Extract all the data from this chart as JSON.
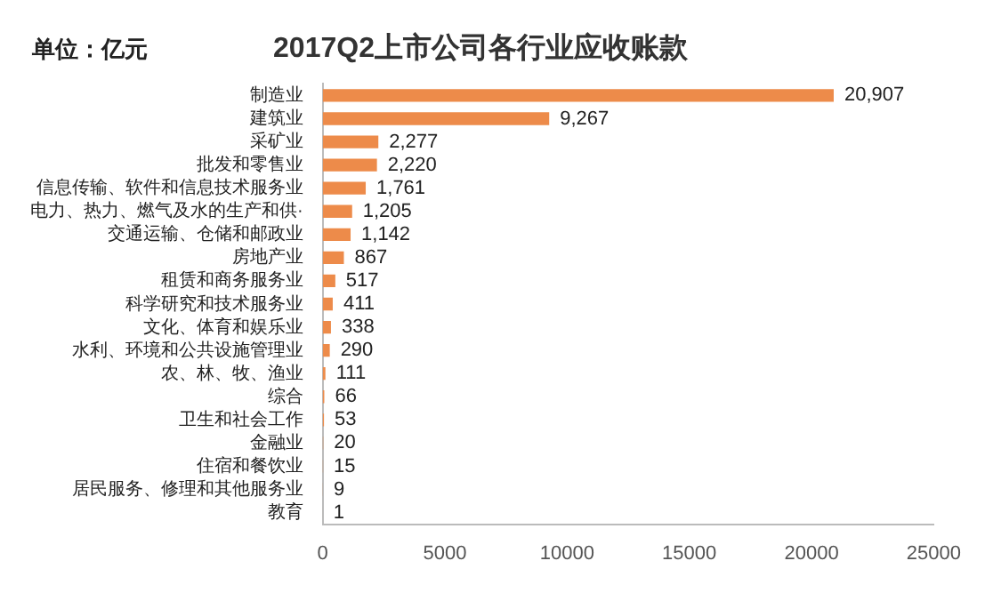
{
  "chart_data": {
    "type": "bar",
    "orientation": "horizontal",
    "title": "2017Q2上市公司各行业应收账款",
    "annotations": [
      "单位：亿元"
    ],
    "categories": [
      "制造业",
      "建筑业",
      "采矿业",
      "批发和零售业",
      "信息传输、软件和信息技术服务业",
      "电力、热力、燃气及水的生产和供·",
      "交通运输、仓储和邮政业",
      "房地产业",
      "租赁和商务服务业",
      "科学研究和技术服务业",
      "文化、体育和娱乐业",
      "水利、环境和公共设施管理业",
      "农、林、牧、渔业",
      "综合",
      "卫生和社会工作",
      "金融业",
      "住宿和餐饮业",
      "居民服务、修理和其他服务业",
      "教育"
    ],
    "values": [
      20907,
      9267,
      2277,
      2220,
      1761,
      1205,
      1142,
      867,
      517,
      411,
      338,
      290,
      111,
      66,
      53,
      20,
      15,
      9,
      1
    ],
    "value_labels": [
      "20,907",
      "9,267",
      "2,277",
      "2,220",
      "1,761",
      "1,205",
      "1,142",
      "867",
      "517",
      "411",
      "338",
      "290",
      "111",
      "66",
      "53",
      "20",
      "15",
      "9",
      "1"
    ],
    "color": "#ed8b4a",
    "xlim": [
      0,
      25000
    ],
    "xticks": [
      0,
      5000,
      10000,
      15000,
      20000,
      25000
    ],
    "grid": false,
    "legend": false
  }
}
